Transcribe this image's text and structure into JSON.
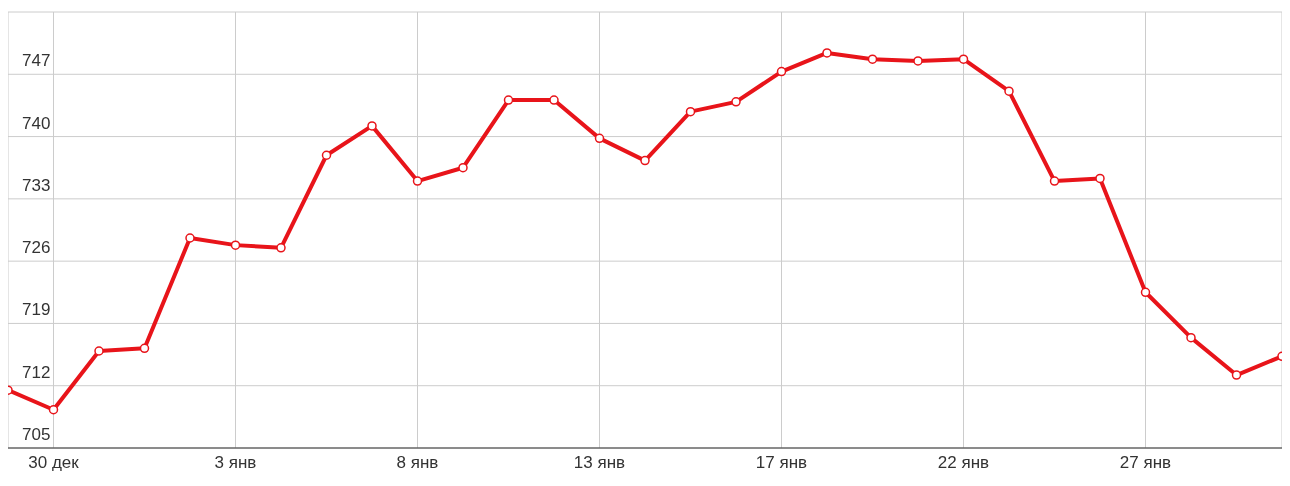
{
  "chart_data": {
    "type": "line",
    "categories": [
      null,
      "30 дек",
      null,
      null,
      null,
      "3 янв",
      null,
      null,
      null,
      "8 янв",
      null,
      null,
      null,
      "13 янв",
      null,
      null,
      null,
      "17 янв",
      null,
      null,
      null,
      "22 янв",
      null,
      null,
      null,
      "27 янв",
      null,
      null,
      null
    ],
    "series": [
      {
        "color": "#e8141a",
        "values": [
          711.5,
          709.3,
          715.9,
          716.2,
          728.6,
          727.8,
          727.5,
          737.9,
          741.2,
          735.0,
          736.5,
          744.1,
          744.1,
          739.8,
          737.3,
          742.8,
          743.9,
          747.3,
          749.4,
          748.7,
          748.5,
          748.7,
          745.1,
          735.0,
          735.3,
          722.5,
          717.4,
          713.2,
          715.3
        ]
      }
    ],
    "ylim": [
      705,
      754
    ],
    "yticks": [
      705,
      712,
      719,
      726,
      733,
      740,
      747
    ],
    "grid": true,
    "marker": "circle",
    "line_style": "solid"
  }
}
